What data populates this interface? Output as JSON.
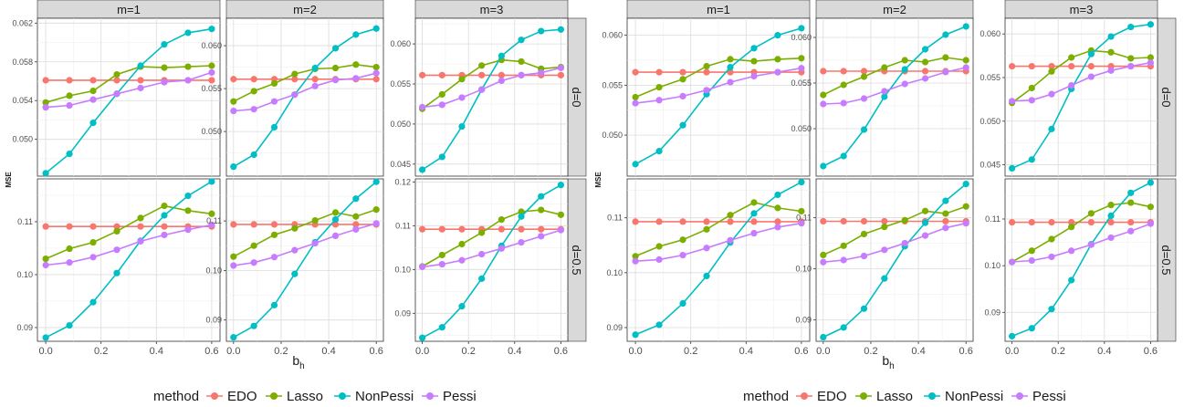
{
  "chart_data": [
    {
      "type": "line",
      "xlabel": "b",
      "xlabel_sub": "h",
      "ylabel": "MSE",
      "x": [
        0.0,
        0.0857,
        0.1714,
        0.2571,
        0.3429,
        0.4286,
        0.5143,
        0.6
      ],
      "x_ticks": [
        "0.0",
        "0.2",
        "0.4",
        "0.6"
      ],
      "column_labels": [
        "m=1",
        "m=2",
        "m=3"
      ],
      "row_labels": [
        "d=0",
        "d=0.5"
      ],
      "legend": {
        "title": "method",
        "position": "bottom",
        "items": [
          "EDO",
          "Lasso",
          "NonPessi",
          "Pessi"
        ]
      },
      "series_colors": {
        "EDO": "#F8766D",
        "Lasso": "#7CAE00",
        "NonPessi": "#00BFC4",
        "Pessi": "#C77CFF"
      },
      "rows": [
        {
          "ylim": [
            0.0462,
            0.0625
          ],
          "yticks": [
            0.05,
            0.054,
            0.058,
            0.062
          ],
          "ytick_labels": [
            "0.050",
            "0.054",
            "0.058",
            "0.062"
          ],
          "ylim_by_panel": [
            [
              0.0462,
              0.0625
            ],
            [
              0.0448,
              0.0632
            ],
            [
              0.0435,
              0.0632
            ]
          ],
          "yticks_by_panel": [
            [
              0.05,
              0.054,
              0.058,
              0.062
            ],
            [
              0.05,
              0.055,
              0.06
            ],
            [
              0.045,
              0.05,
              0.055,
              0.06
            ]
          ],
          "ytick_labels_by_panel": [
            [
              "0.050",
              "0.054",
              "0.058",
              "0.062"
            ],
            [
              "0.050",
              "0.055",
              "0.060"
            ],
            [
              "0.045",
              "0.050",
              "0.055",
              "0.060"
            ]
          ],
          "panels": [
            {
              "EDO": [
                0.0561,
                0.0561,
                0.0561,
                0.0561,
                0.0561,
                0.0561,
                0.0561,
                0.0561
              ],
              "Lasso": [
                0.0538,
                0.0545,
                0.055,
                0.0567,
                0.0575,
                0.0574,
                0.0575,
                0.0576
              ],
              "NonPessi": [
                0.0465,
                0.0485,
                0.0517,
                0.0547,
                0.0576,
                0.0598,
                0.061,
                0.0614
              ],
              "Pessi": [
                0.0533,
                0.0535,
                0.0541,
                0.0547,
                0.0553,
                0.0559,
                0.0561,
                0.0569
              ]
            },
            {
              "EDO": [
                0.0561,
                0.0561,
                0.0561,
                0.0561,
                0.0561,
                0.0561,
                0.0561,
                0.0561
              ],
              "Lasso": [
                0.0535,
                0.0547,
                0.0556,
                0.0567,
                0.0573,
                0.0574,
                0.0578,
                0.0575
              ],
              "NonPessi": [
                0.0459,
                0.0473,
                0.0505,
                0.0543,
                0.0574,
                0.0597,
                0.0613,
                0.062
              ],
              "Pessi": [
                0.0524,
                0.0526,
                0.0535,
                0.0543,
                0.0553,
                0.056,
                0.0562,
                0.0568
              ]
            },
            {
              "EDO": [
                0.0561,
                0.0561,
                0.0561,
                0.0561,
                0.0561,
                0.0561,
                0.0561,
                0.0561
              ],
              "Lasso": [
                0.0519,
                0.0537,
                0.0556,
                0.0573,
                0.058,
                0.0578,
                0.0569,
                0.0571
              ],
              "NonPessi": [
                0.0443,
                0.0459,
                0.0497,
                0.0543,
                0.0585,
                0.0605,
                0.0616,
                0.0618
              ],
              "Pessi": [
                0.0521,
                0.0524,
                0.0533,
                0.0543,
                0.0554,
                0.0561,
                0.0564,
                0.057
              ]
            }
          ]
        },
        {
          "ylim": [
            0.0874,
            0.1181
          ],
          "yticks": [
            0.09,
            0.1,
            0.11
          ],
          "ytick_labels": [
            "0.09",
            "0.10",
            "0.11"
          ],
          "ylim_by_panel": [
            [
              0.0874,
              0.1181
            ],
            [
              0.0857,
              0.1185
            ],
            [
              0.0836,
              0.1207
            ]
          ],
          "yticks_by_panel": [
            [
              0.09,
              0.1,
              0.11
            ],
            [
              0.09,
              0.1,
              0.11
            ],
            [
              0.09,
              0.1,
              0.11,
              0.12
            ]
          ],
          "ytick_labels_by_panel": [
            [
              "0.09",
              "0.10",
              "0.11"
            ],
            [
              "0.09",
              "0.10",
              "0.11"
            ],
            [
              "0.09",
              "0.10",
              "0.11",
              "0.12"
            ]
          ],
          "panels": [
            {
              "EDO": [
                0.1091,
                0.1091,
                0.1091,
                0.1091,
                0.1091,
                0.1091,
                0.1091,
                0.1091
              ],
              "Lasso": [
                0.103,
                0.1049,
                0.1061,
                0.1082,
                0.1107,
                0.113,
                0.1121,
                0.1115
              ],
              "NonPessi": [
                0.0881,
                0.0904,
                0.0948,
                0.1003,
                0.1064,
                0.1112,
                0.1149,
                0.1176
              ],
              "Pessi": [
                0.1018,
                0.1023,
                0.1033,
                0.1047,
                0.1063,
                0.1075,
                0.1085,
                0.1094
              ]
            },
            {
              "EDO": [
                0.1093,
                0.1093,
                0.1093,
                0.1093,
                0.1093,
                0.1093,
                0.1093,
                0.1093
              ],
              "Lasso": [
                0.1028,
                0.105,
                0.1072,
                0.1085,
                0.1101,
                0.1117,
                0.1109,
                0.1123
              ],
              "NonPessi": [
                0.0865,
                0.0888,
                0.093,
                0.0993,
                0.1057,
                0.1103,
                0.1145,
                0.1179
              ],
              "Pessi": [
                0.101,
                0.1016,
                0.1027,
                0.1041,
                0.1055,
                0.107,
                0.1083,
                0.1095
              ]
            },
            {
              "EDO": [
                0.1092,
                0.1092,
                0.1092,
                0.1092,
                0.1092,
                0.1092,
                0.1092,
                0.1092
              ],
              "Lasso": [
                0.1007,
                0.1033,
                0.1058,
                0.1084,
                0.1114,
                0.1132,
                0.1136,
                0.1125
              ],
              "NonPessi": [
                0.0844,
                0.0868,
                0.0916,
                0.0979,
                0.1054,
                0.1121,
                0.1167,
                0.1193
              ],
              "Pessi": [
                0.1006,
                0.1012,
                0.1021,
                0.1035,
                0.1048,
                0.1062,
                0.1076,
                0.109
              ]
            }
          ]
        }
      ]
    },
    {
      "type": "line",
      "xlabel": "b",
      "xlabel_sub": "h",
      "ylabel": "MSE",
      "x": [
        0.0,
        0.0857,
        0.1714,
        0.2571,
        0.3429,
        0.4286,
        0.5143,
        0.6
      ],
      "x_ticks": [
        "0.0",
        "0.2",
        "0.4",
        "0.6"
      ],
      "column_labels": [
        "m=1",
        "m=2",
        "m=3"
      ],
      "row_labels": [
        "d=0",
        "d=0.5"
      ],
      "legend": {
        "title": "method",
        "position": "bottom",
        "items": [
          "EDO",
          "Lasso",
          "NonPessi",
          "Pessi"
        ]
      },
      "series_colors": {
        "EDO": "#F8766D",
        "Lasso": "#7CAE00",
        "NonPessi": "#00BFC4",
        "Pessi": "#C77CFF"
      },
      "rows": [
        {
          "ylim": [
            0.0459,
            0.0617
          ],
          "yticks": [
            0.05,
            0.055,
            0.06
          ],
          "ytick_labels": [
            "0.050",
            "0.055",
            "0.060"
          ],
          "ylim_by_panel": [
            [
              0.0459,
              0.0617
            ],
            [
              0.0448,
              0.0621
            ],
            [
              0.0437,
              0.0618
            ]
          ],
          "yticks_by_panel": [
            [
              0.05,
              0.055,
              0.06
            ],
            [
              0.05,
              0.055,
              0.06
            ],
            [
              0.045,
              0.05,
              0.055,
              0.06
            ]
          ],
          "ytick_labels_by_panel": [
            [
              "0.050",
              "0.055",
              "0.060"
            ],
            [
              "0.050",
              "0.055",
              "0.060"
            ],
            [
              "0.045",
              "0.050",
              "0.055",
              "0.060"
            ]
          ],
          "panels": [
            {
              "EDO": [
                0.0563,
                0.0563,
                0.0563,
                0.0563,
                0.0563,
                0.0563,
                0.0563,
                0.0563
              ],
              "Lasso": [
                0.0538,
                0.0548,
                0.0556,
                0.0569,
                0.0576,
                0.0574,
                0.0576,
                0.0577
              ],
              "NonPessi": [
                0.0471,
                0.0484,
                0.051,
                0.0541,
                0.0568,
                0.0587,
                0.06,
                0.0607
              ],
              "Pessi": [
                0.0532,
                0.0535,
                0.0539,
                0.0545,
                0.0553,
                0.0559,
                0.0563,
                0.0567
              ]
            },
            {
              "EDO": [
                0.0563,
                0.0563,
                0.0563,
                0.0563,
                0.0563,
                0.0563,
                0.0563,
                0.0563
              ],
              "Lasso": [
                0.0537,
                0.0548,
                0.0557,
                0.0567,
                0.0575,
                0.0573,
                0.0578,
                0.0575
              ],
              "NonPessi": [
                0.0459,
                0.047,
                0.0499,
                0.0535,
                0.0565,
                0.0587,
                0.0603,
                0.0612
              ],
              "Pessi": [
                0.0527,
                0.0528,
                0.0533,
                0.0541,
                0.0549,
                0.0555,
                0.0562,
                0.0567
              ]
            },
            {
              "EDO": [
                0.0563,
                0.0563,
                0.0563,
                0.0563,
                0.0563,
                0.0563,
                0.0563,
                0.0563
              ],
              "Lasso": [
                0.0521,
                0.0538,
                0.0557,
                0.0573,
                0.0581,
                0.0579,
                0.0572,
                0.0573
              ],
              "NonPessi": [
                0.0446,
                0.0456,
                0.0491,
                0.0537,
                0.0577,
                0.0597,
                0.0608,
                0.0611
              ],
              "Pessi": [
                0.0523,
                0.0524,
                0.0531,
                0.0541,
                0.0551,
                0.0558,
                0.0563,
                0.0567
              ]
            }
          ]
        },
        {
          "ylim": [
            0.0874,
            0.1181
          ],
          "yticks": [
            0.09,
            0.1,
            0.11
          ],
          "ytick_labels": [
            "0.09",
            "0.10",
            "0.11"
          ],
          "ylim_by_panel": [
            [
              0.0875,
              0.1171
            ],
            [
              0.0858,
              0.1176
            ],
            [
              0.0838,
              0.1186
            ]
          ],
          "yticks_by_panel": [
            [
              0.09,
              0.1,
              0.11
            ],
            [
              0.09,
              0.1,
              0.11
            ],
            [
              0.09,
              0.1,
              0.11
            ]
          ],
          "ytick_labels_by_panel": [
            [
              "0.09",
              "0.10",
              "0.11"
            ],
            [
              "0.09",
              "0.10",
              "0.11"
            ],
            [
              "0.09",
              "0.10",
              "0.11"
            ]
          ],
          "panels": [
            {
              "EDO": [
                0.1093,
                0.1093,
                0.1093,
                0.1093,
                0.1093,
                0.1093,
                0.1093,
                0.1093
              ],
              "Lasso": [
                0.103,
                0.1048,
                0.106,
                0.1079,
                0.1105,
                0.1128,
                0.1118,
                0.1112
              ],
              "NonPessi": [
                0.0887,
                0.0905,
                0.0944,
                0.0994,
                0.1055,
                0.1108,
                0.1142,
                0.1165
              ],
              "Pessi": [
                0.1021,
                0.1024,
                0.1032,
                0.1045,
                0.1059,
                0.1072,
                0.1083,
                0.109
              ]
            },
            {
              "EDO": [
                0.1093,
                0.1093,
                0.1093,
                0.1093,
                0.1093,
                0.1093,
                0.1093,
                0.1093
              ],
              "Lasso": [
                0.1027,
                0.1045,
                0.1068,
                0.1082,
                0.1095,
                0.1113,
                0.1108,
                0.1122
              ],
              "NonPessi": [
                0.0866,
                0.0885,
                0.0922,
                0.0981,
                0.1044,
                0.109,
                0.1133,
                0.1166
              ],
              "Pessi": [
                0.1013,
                0.1017,
                0.1025,
                0.1037,
                0.105,
                0.1065,
                0.108,
                0.1089
              ]
            },
            {
              "EDO": [
                0.1093,
                0.1093,
                0.1093,
                0.1093,
                0.1093,
                0.1093,
                0.1093,
                0.1093
              ],
              "Lasso": [
                0.1008,
                0.1032,
                0.1057,
                0.1083,
                0.1112,
                0.113,
                0.1135,
                0.1126
              ],
              "NonPessi": [
                0.0849,
                0.0866,
                0.0907,
                0.0969,
                0.1046,
                0.1107,
                0.1156,
                0.1178
              ],
              "Pessi": [
                0.1008,
                0.1011,
                0.1019,
                0.1032,
                0.1045,
                0.106,
                0.1074,
                0.109
              ]
            }
          ]
        }
      ]
    }
  ]
}
